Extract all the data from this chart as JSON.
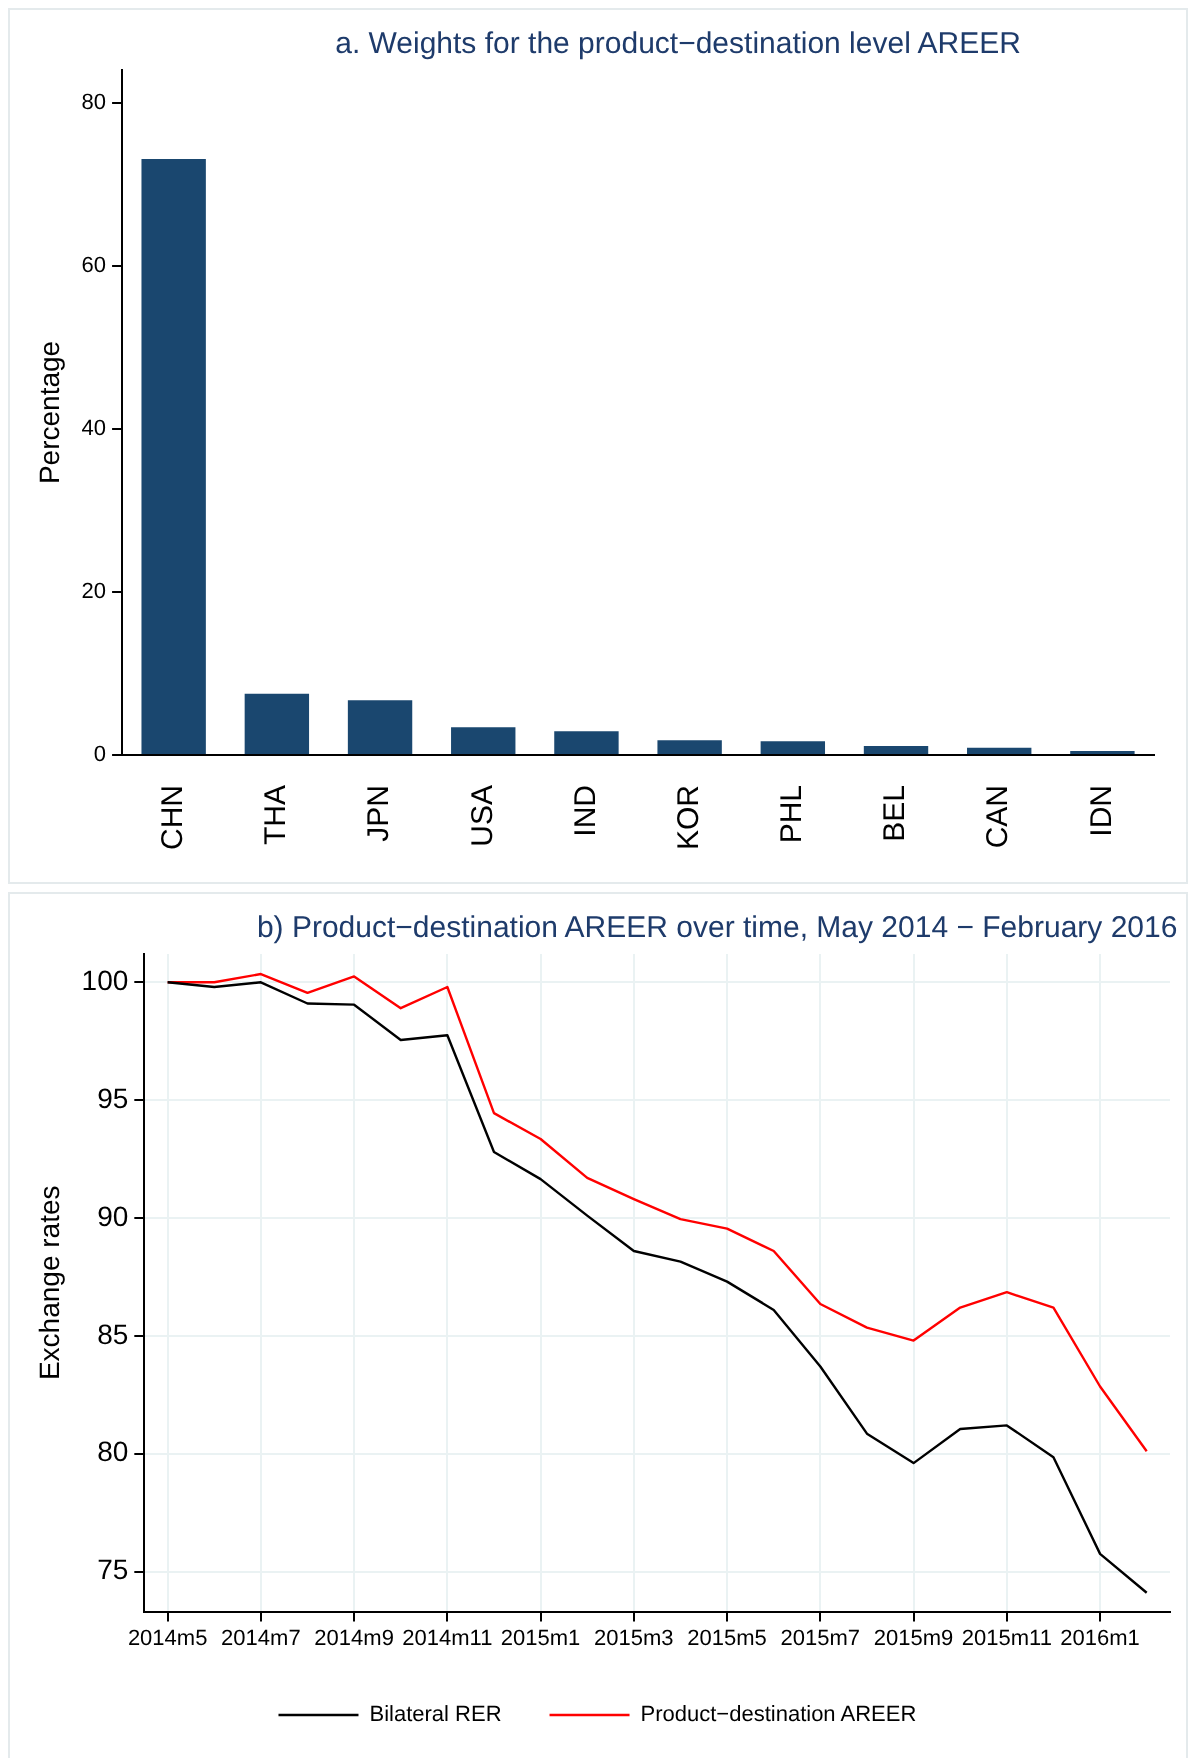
{
  "chart_data": [
    {
      "type": "bar",
      "title": "a. Weights for the product−destination level AREER",
      "ylabel": "Percentage",
      "categories": [
        "CHN",
        "THA",
        "JPN",
        "USA",
        "IND",
        "KOR",
        "PHL",
        "BEL",
        "CAN",
        "IDN"
      ],
      "values": [
        73.1,
        7.5,
        6.7,
        3.4,
        2.9,
        1.8,
        1.7,
        1.1,
        0.9,
        0.5
      ],
      "color": "#1a476f",
      "ylim": [
        0,
        84
      ],
      "yticks": [
        0,
        20,
        40,
        60,
        80
      ],
      "grid": false,
      "legend": false
    },
    {
      "type": "line",
      "title": "b) Product−destination AREER over time, May 2014 − February 2016",
      "ylabel": "Exchange rates",
      "categories": [
        "2014m5",
        null,
        "2014m7",
        null,
        "2014m9",
        null,
        "2014m11",
        null,
        "2015m1",
        null,
        "2015m3",
        null,
        "2015m5",
        null,
        "2015m7",
        null,
        "2015m9",
        null,
        "2015m11",
        null,
        "2016m1",
        null
      ],
      "series": [
        {
          "name": "Bilateral RER",
          "color": "#000000",
          "values": [
            100,
            99.8,
            100,
            99.1,
            99.05,
            97.55,
            97.75,
            92.8,
            91.65,
            90.1,
            88.6,
            88.15,
            87.3,
            86.1,
            83.7,
            80.85,
            79.6,
            81.05,
            81.2,
            79.85,
            75.75,
            74.1
          ]
        },
        {
          "name": "Product−destination AREER",
          "color": "#ff0000",
          "values": [
            100,
            100,
            100.35,
            99.55,
            100.25,
            98.9,
            99.8,
            94.45,
            93.35,
            91.7,
            90.8,
            89.95,
            89.55,
            88.6,
            86.35,
            85.35,
            84.8,
            86.2,
            86.85,
            86.2,
            82.85,
            80.1
          ]
        }
      ],
      "ylim": [
        73.3,
        101.2
      ],
      "yticks": [
        75,
        80,
        85,
        90,
        95,
        100
      ],
      "grid": true,
      "legend": "bottom",
      "marker": "none",
      "line_style": "solid"
    }
  ]
}
